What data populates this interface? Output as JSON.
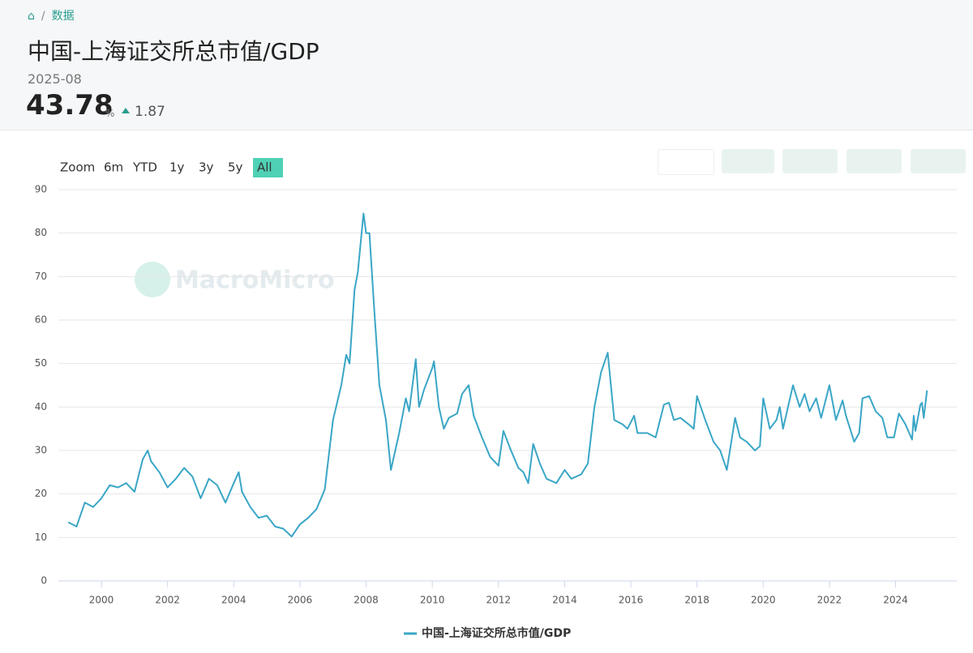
{
  "header": {
    "breadcrumb": "数据",
    "title": "中国-上海证交所总市值/GDP",
    "date": "2025-08",
    "value": 43.78,
    "unit": "%",
    "change": 1.87
  },
  "range_buttons": [
    "Zoom",
    "6m",
    "YTD",
    "1y",
    "3y",
    "5y",
    "All"
  ],
  "watermark": "MacroMicro",
  "chart_data": {
    "type": "line",
    "xlim": [
      1998.7,
      2025.85
    ],
    "xticks": [
      2000,
      2002,
      2004,
      2006,
      2008,
      2010,
      2012,
      2014,
      2016,
      2018,
      2020,
      2022,
      2024
    ],
    "ylim": [
      0,
      90
    ],
    "yticks": [
      0,
      10,
      20,
      30,
      40,
      50,
      60,
      70,
      80,
      90
    ],
    "grid": true,
    "series": [
      {
        "name": "中国-上海证交所总市值/GDP",
        "color": "#3aa6c6",
        "x": [
          1999.0,
          1999.25,
          1999.5,
          1999.75,
          2000.0,
          2000.25,
          2000.5,
          2000.75,
          2001.0,
          2001.25,
          2001.4,
          2001.5,
          2001.75,
          2002.0,
          2002.25,
          2002.5,
          2002.75,
          2003.0,
          2003.25,
          2003.5,
          2003.75,
          2004.0,
          2004.15,
          2004.25,
          2004.5,
          2004.75,
          2005.0,
          2005.25,
          2005.5,
          2005.75,
          2006.0,
          2006.25,
          2006.5,
          2006.75,
          2007.0,
          2007.25,
          2007.4,
          2007.5,
          2007.65,
          2007.75,
          2007.92,
          2008.0,
          2008.1,
          2008.25,
          2008.4,
          2008.6,
          2008.75,
          2009.0,
          2009.2,
          2009.3,
          2009.5,
          2009.6,
          2009.75,
          2010.0,
          2010.05,
          2010.2,
          2010.35,
          2010.5,
          2010.75,
          2010.9,
          2011.1,
          2011.25,
          2011.5,
          2011.75,
          2012.0,
          2012.15,
          2012.35,
          2012.6,
          2012.75,
          2012.9,
          2013.05,
          2013.25,
          2013.45,
          2013.75,
          2014.0,
          2014.2,
          2014.5,
          2014.7,
          2014.9,
          2015.1,
          2015.3,
          2015.5,
          2015.75,
          2015.9,
          2016.1,
          2016.2,
          2016.5,
          2016.75,
          2017.0,
          2017.15,
          2017.3,
          2017.5,
          2017.75,
          2017.9,
          2018.0,
          2018.25,
          2018.5,
          2018.7,
          2018.9,
          2019.15,
          2019.3,
          2019.5,
          2019.75,
          2019.9,
          2020.0,
          2020.2,
          2020.4,
          2020.5,
          2020.6,
          2020.9,
          2021.1,
          2021.25,
          2021.4,
          2021.6,
          2021.75,
          2022.0,
          2022.2,
          2022.4,
          2022.5,
          2022.75,
          2022.9,
          2023.0,
          2023.2,
          2023.4,
          2023.6,
          2023.75,
          2023.95,
          2024.1,
          2024.3,
          2024.5,
          2024.55,
          2024.6,
          2024.75,
          2024.8,
          2024.85,
          2024.95
        ],
        "values": [
          13.5,
          12.5,
          18,
          17,
          19,
          22,
          21.5,
          22.5,
          20.5,
          28,
          30,
          27.5,
          25,
          21.5,
          23.5,
          26,
          24,
          19,
          23.5,
          22,
          18,
          22.5,
          25,
          20.5,
          17,
          14.5,
          15,
          12.5,
          12,
          10.2,
          13,
          14.5,
          16.5,
          21,
          37,
          45,
          52,
          50,
          67,
          71,
          84.5,
          80,
          80,
          62,
          45,
          37,
          25.5,
          34,
          42,
          39,
          51,
          40,
          44,
          49,
          50.5,
          40,
          35,
          37.5,
          38.5,
          43,
          45,
          38,
          33,
          28.5,
          26.5,
          34.5,
          30.5,
          26,
          25,
          22.5,
          31.5,
          27,
          23.5,
          22.5,
          25.5,
          23.5,
          24.5,
          27,
          40,
          48,
          52.5,
          37,
          36,
          35,
          38,
          34,
          34,
          33,
          40.5,
          41,
          37,
          37.5,
          36,
          35,
          42.5,
          37,
          32,
          30,
          25.5,
          37.5,
          33,
          32,
          30,
          31,
          42,
          35,
          37,
          40,
          35,
          45,
          40,
          43,
          39,
          42,
          37.5,
          45,
          37,
          41.5,
          38,
          32,
          34,
          42,
          42.5,
          39,
          37.5,
          33,
          33,
          38.5,
          36,
          32.5,
          38,
          34.5,
          40.5,
          41,
          37.5,
          43.8
        ]
      }
    ]
  }
}
